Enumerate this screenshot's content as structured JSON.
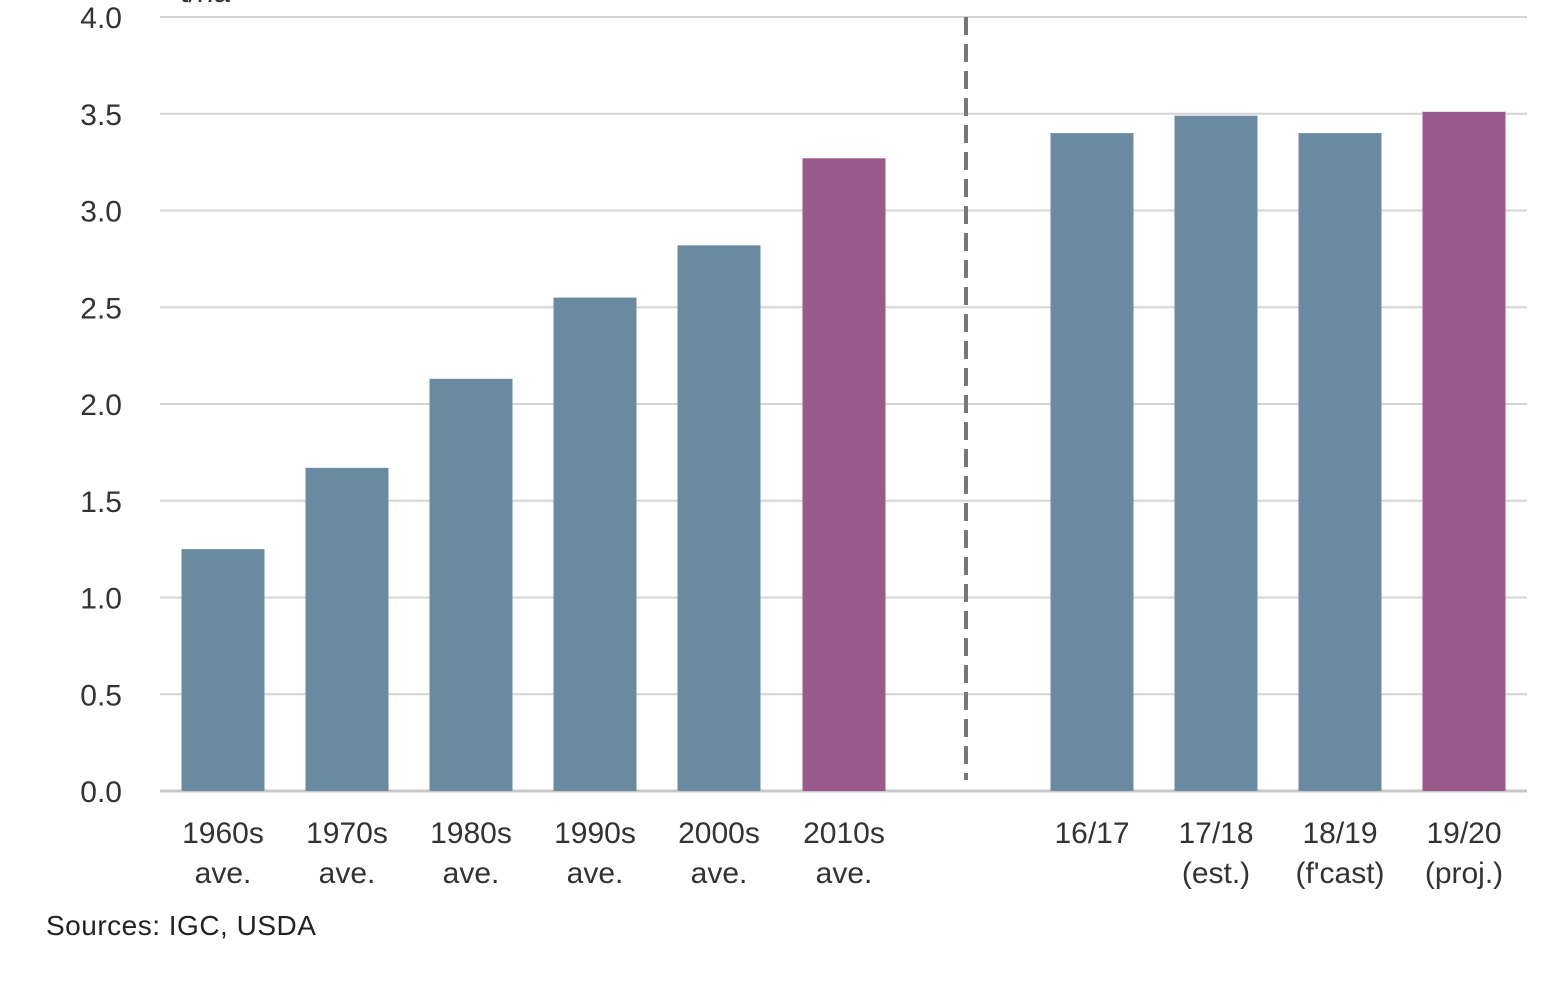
{
  "chart_data": {
    "type": "bar",
    "title": "",
    "unit_label": "t/ha",
    "xlabel": "",
    "ylabel": "",
    "ylim": [
      0,
      4.0
    ],
    "y_ticks": [
      "0.0",
      "0.5",
      "1.0",
      "1.5",
      "2.0",
      "2.5",
      "3.0",
      "3.5",
      "4.0"
    ],
    "grid": true,
    "legend": "none",
    "categories": [
      [
        "1960s",
        "ave."
      ],
      [
        "1970s",
        "ave."
      ],
      [
        "1980s",
        "ave."
      ],
      [
        "1990s",
        "ave."
      ],
      [
        "2000s",
        "ave."
      ],
      [
        "2010s",
        "ave."
      ],
      [
        "16/17"
      ],
      [
        "17/18",
        "(est.)"
      ],
      [
        "18/19",
        "(f'cast)"
      ],
      [
        "19/20",
        "(proj.)"
      ]
    ],
    "values": [
      1.25,
      1.67,
      2.13,
      2.55,
      2.82,
      3.27,
      3.4,
      3.49,
      3.4,
      3.51
    ],
    "bar_colors": [
      "#6a8aa1",
      "#6a8aa1",
      "#6a8aa1",
      "#6a8aa1",
      "#6a8aa1",
      "#9b5a8c",
      "#6a8aa1",
      "#6a8aa1",
      "#6a8aa1",
      "#9b5a8c"
    ],
    "divider": "dashed vertical line between 2010s ave. and 16/17",
    "colors": {
      "bar_default": "#6a8aa1",
      "bar_highlight": "#9b5a8c",
      "gridline": "#d4d4d4",
      "text": "#333333",
      "divider": "#777777"
    }
  },
  "source_note": "Sources: IGC, USDA"
}
